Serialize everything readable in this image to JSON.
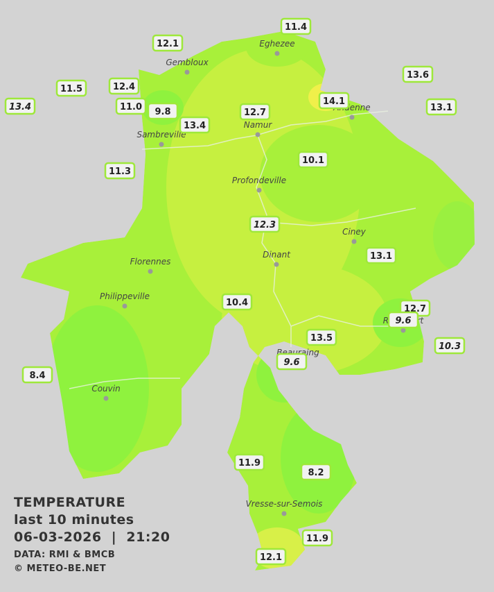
{
  "title": "TEMPERATURE",
  "subtitle": "last 10 minutes",
  "datetime": "06-03-2026  |  21:20",
  "source": "DATA: RMI & BMCB",
  "copyright": "© METEO-BE.NET",
  "towns": [
    "Eghezee",
    "Gembloux",
    "Andenne",
    "Namur",
    "Sambreville",
    "Profondeville",
    "Ciney",
    "Dinant",
    "Florennes",
    "Philippeville",
    "Beauraing",
    "Rochefort",
    "Couvin",
    "Vresse-sur-Semois"
  ],
  "readings": [
    "11.4",
    "12.1",
    "13.6",
    "11.5",
    "12.4",
    "13.4",
    "11.0",
    "9.8",
    "14.1",
    "13.1",
    "12.7",
    "13.4",
    "11.3",
    "10.1",
    "12.3",
    "13.1",
    "10.4",
    "12.7",
    "9.6",
    "13.5",
    "10.3",
    "9.6",
    "8.4",
    "11.9",
    "8.2",
    "11.9",
    "12.1"
  ]
}
